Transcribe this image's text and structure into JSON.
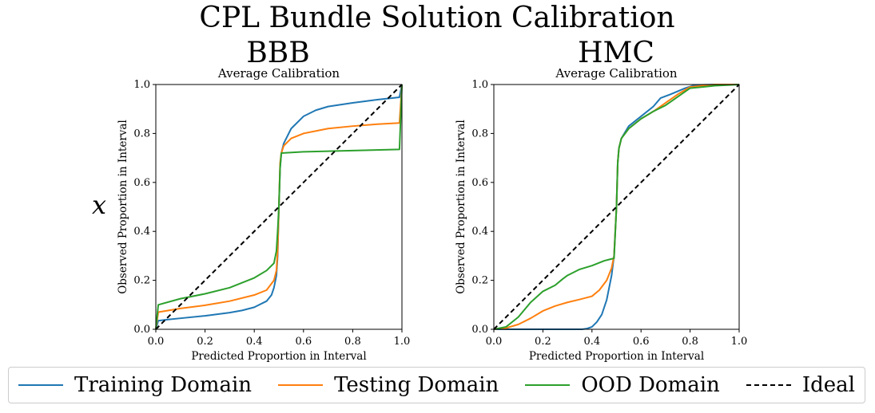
{
  "figure": {
    "title": "CPL Bundle Solution Calibration",
    "row_label": "x"
  },
  "legend": [
    {
      "label": "Training Domain",
      "color": "#1f77b4",
      "dash": "solid"
    },
    {
      "label": "Testing Domain",
      "color": "#ff7f0e",
      "dash": "solid"
    },
    {
      "label": "OOD Domain",
      "color": "#2ca02c",
      "dash": "solid"
    },
    {
      "label": "Ideal",
      "color": "#000000",
      "dash": "dashed"
    }
  ],
  "chart_data": [
    {
      "type": "line",
      "panel_title": "BBB",
      "title": "Average Calibration",
      "xlabel": "Predicted Proportion in Interval",
      "ylabel": "Observed Proportion in Interval",
      "xlim": [
        0,
        1
      ],
      "ylim": [
        0,
        1
      ],
      "xticks": [
        "0.0",
        "0.2",
        "0.4",
        "0.6",
        "0.8",
        "1.0"
      ],
      "yticks": [
        "0.0",
        "0.2",
        "0.4",
        "0.6",
        "0.8",
        "1.0"
      ],
      "series": [
        {
          "name": "Training Domain",
          "color": "#1f77b4",
          "x": [
            0,
            0.01,
            0.05,
            0.1,
            0.2,
            0.3,
            0.35,
            0.4,
            0.45,
            0.47,
            0.48,
            0.49,
            0.495,
            0.5,
            0.505,
            0.51,
            0.52,
            0.55,
            0.6,
            0.65,
            0.7,
            0.8,
            0.9,
            0.99,
            1.0
          ],
          "y": [
            0,
            0.035,
            0.04,
            0.045,
            0.055,
            0.068,
            0.077,
            0.09,
            0.115,
            0.14,
            0.17,
            0.22,
            0.3,
            0.5,
            0.66,
            0.72,
            0.76,
            0.82,
            0.87,
            0.895,
            0.91,
            0.925,
            0.938,
            0.948,
            1.0
          ]
        },
        {
          "name": "Testing Domain",
          "color": "#ff7f0e",
          "x": [
            0,
            0.01,
            0.1,
            0.2,
            0.3,
            0.4,
            0.45,
            0.48,
            0.49,
            0.495,
            0.5,
            0.505,
            0.51,
            0.52,
            0.55,
            0.6,
            0.7,
            0.8,
            0.9,
            0.99,
            1.0
          ],
          "y": [
            0,
            0.07,
            0.085,
            0.098,
            0.115,
            0.14,
            0.16,
            0.2,
            0.24,
            0.32,
            0.5,
            0.68,
            0.72,
            0.75,
            0.78,
            0.8,
            0.82,
            0.83,
            0.838,
            0.843,
            1.0
          ]
        },
        {
          "name": "OOD Domain",
          "color": "#2ca02c",
          "x": [
            0,
            0.01,
            0.1,
            0.2,
            0.3,
            0.4,
            0.45,
            0.48,
            0.49,
            0.495,
            0.5,
            0.505,
            0.51,
            0.6,
            0.8,
            0.99,
            1.0
          ],
          "y": [
            0,
            0.1,
            0.125,
            0.145,
            0.17,
            0.21,
            0.24,
            0.27,
            0.32,
            0.4,
            0.5,
            0.66,
            0.72,
            0.725,
            0.73,
            0.735,
            1.0
          ]
        },
        {
          "name": "Ideal",
          "color": "#000000",
          "dashed": true,
          "x": [
            0,
            1
          ],
          "y": [
            0,
            1
          ]
        }
      ]
    },
    {
      "type": "line",
      "panel_title": "HMC",
      "title": "Average Calibration",
      "xlabel": "Predicted Proportion in Interval",
      "ylabel": "Observed Proportion in Interval",
      "xlim": [
        0,
        1
      ],
      "ylim": [
        0,
        1
      ],
      "xticks": [
        "0.0",
        "0.2",
        "0.4",
        "0.6",
        "0.8",
        "1.0"
      ],
      "yticks": [
        "0.0",
        "0.2",
        "0.4",
        "0.6",
        "0.8",
        "1.0"
      ],
      "series": [
        {
          "name": "Training Domain",
          "color": "#1f77b4",
          "x": [
            0,
            0.36,
            0.38,
            0.4,
            0.42,
            0.44,
            0.46,
            0.48,
            0.49,
            0.5,
            0.505,
            0.51,
            0.52,
            0.55,
            0.6,
            0.65,
            0.68,
            0.72,
            0.78,
            0.82,
            0.9,
            1.0
          ],
          "y": [
            0,
            0,
            0.003,
            0.01,
            0.03,
            0.06,
            0.12,
            0.22,
            0.3,
            0.5,
            0.68,
            0.74,
            0.78,
            0.83,
            0.87,
            0.91,
            0.945,
            0.96,
            0.985,
            0.998,
            1.0,
            1.0
          ]
        },
        {
          "name": "Testing Domain",
          "color": "#ff7f0e",
          "x": [
            0,
            0.05,
            0.1,
            0.15,
            0.2,
            0.25,
            0.3,
            0.35,
            0.4,
            0.43,
            0.46,
            0.48,
            0.49,
            0.5,
            0.505,
            0.51,
            0.52,
            0.55,
            0.6,
            0.65,
            0.7,
            0.75,
            0.8,
            0.9,
            1.0
          ],
          "y": [
            0,
            0.005,
            0.02,
            0.045,
            0.075,
            0.095,
            0.11,
            0.122,
            0.135,
            0.16,
            0.2,
            0.25,
            0.3,
            0.5,
            0.68,
            0.74,
            0.78,
            0.82,
            0.86,
            0.89,
            0.925,
            0.96,
            0.99,
            1.0,
            1.0
          ]
        },
        {
          "name": "OOD Domain",
          "color": "#2ca02c",
          "x": [
            0,
            0.05,
            0.1,
            0.15,
            0.2,
            0.25,
            0.28,
            0.3,
            0.35,
            0.4,
            0.45,
            0.49,
            0.5,
            0.505,
            0.51,
            0.52,
            0.55,
            0.6,
            0.65,
            0.7,
            0.75,
            0.8,
            0.9,
            1.0
          ],
          "y": [
            0,
            0.01,
            0.05,
            0.11,
            0.155,
            0.18,
            0.205,
            0.22,
            0.245,
            0.26,
            0.28,
            0.29,
            0.5,
            0.68,
            0.74,
            0.78,
            0.82,
            0.86,
            0.89,
            0.915,
            0.95,
            0.985,
            0.995,
            1.0
          ]
        },
        {
          "name": "Ideal",
          "color": "#000000",
          "dashed": true,
          "x": [
            0,
            1
          ],
          "y": [
            0,
            1
          ]
        }
      ]
    }
  ]
}
